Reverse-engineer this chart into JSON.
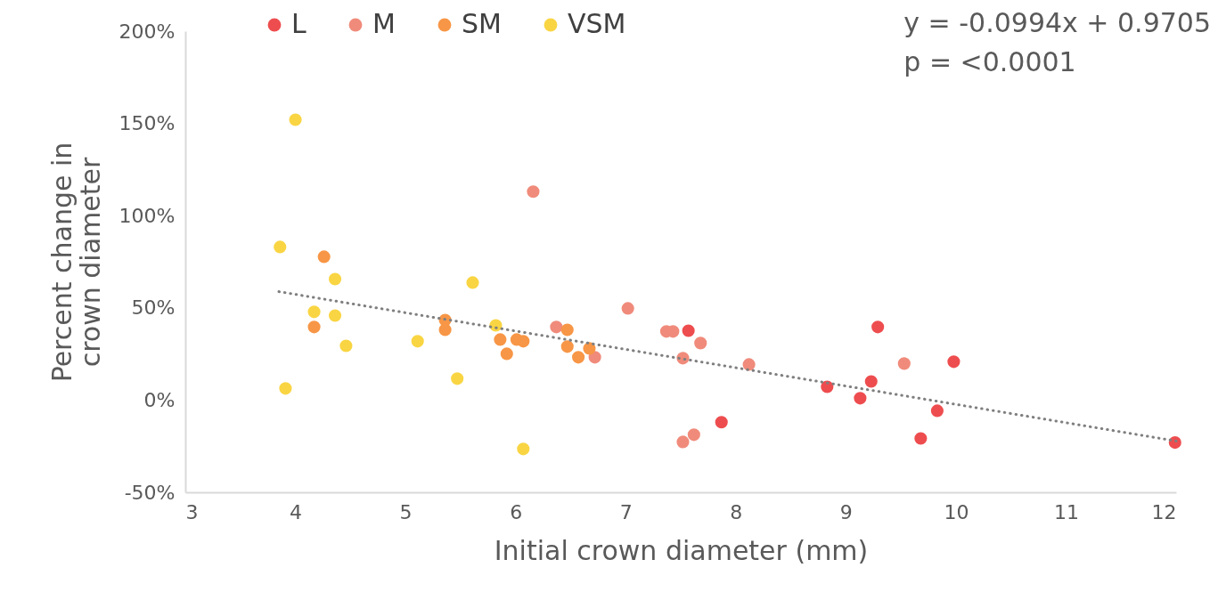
{
  "chart_data": {
    "type": "scatter",
    "xlabel": "Initial crown diameter (mm)",
    "ylabel": "Percent change in crown diameter",
    "xlim": [
      3,
      12
    ],
    "xticks": [
      3,
      4,
      5,
      6,
      7,
      8,
      9,
      10,
      11,
      12
    ],
    "ylim": [
      -50,
      200
    ],
    "yticks": [
      {
        "value": -50,
        "label": "-50%"
      },
      {
        "value": 0,
        "label": "0%"
      },
      {
        "value": 50,
        "label": "50%"
      },
      {
        "value": 100,
        "label": "100%"
      },
      {
        "value": 150,
        "label": "150%"
      },
      {
        "value": 200,
        "label": "200%"
      }
    ],
    "grid": false,
    "legend": "top left",
    "marker": "circle",
    "annotations": [
      "y = -0.0994x + 0.9705",
      "p = <0.0001"
    ],
    "series": [
      {
        "name": "L",
        "color": "#ee4d4f",
        "x": [
          7.57,
          7.87,
          8.83,
          9.13,
          9.23,
          9.29,
          9.68,
          9.83,
          9.98,
          11.99
        ],
        "values": [
          37.6,
          -12,
          7.2,
          1,
          10.1,
          39.6,
          -20.8,
          -5.8,
          20.8,
          -23
        ]
      },
      {
        "name": "M",
        "color": "#f08b7b",
        "x": [
          6.16,
          6.37,
          6.72,
          7.02,
          7.37,
          7.43,
          7.52,
          7.52,
          7.62,
          7.68,
          8.12,
          9.53
        ],
        "values": [
          113,
          39.6,
          23.2,
          49.7,
          37.2,
          37.2,
          22.7,
          -22.7,
          -18.8,
          30.9,
          19.3,
          19.8
        ]
      },
      {
        "name": "SM",
        "color": "#f79646",
        "x": [
          4.17,
          4.26,
          5.36,
          5.36,
          5.86,
          5.92,
          6.01,
          6.07,
          6.47,
          6.47,
          6.57,
          6.67
        ],
        "values": [
          39.6,
          77.7,
          43.4,
          38.1,
          32.8,
          25.1,
          32.8,
          31.9,
          38.1,
          29,
          23.2,
          28
        ]
      },
      {
        "name": "VSM",
        "color": "#f9d543",
        "x": [
          3.86,
          3.91,
          4.0,
          4.17,
          4.36,
          4.36,
          4.46,
          5.11,
          5.47,
          5.61,
          5.82,
          6.07
        ],
        "values": [
          83,
          6.3,
          152,
          47.8,
          65.6,
          45.8,
          29.4,
          31.9,
          11.6,
          63.7,
          40.5,
          -26.5
        ]
      },
      {
        "type": "line",
        "color": "#7f7f7f",
        "line_style": "dotted",
        "marker": "none",
        "x": [
          3.85,
          12
        ],
        "values": [
          58.8,
          -22.2
        ]
      }
    ]
  }
}
